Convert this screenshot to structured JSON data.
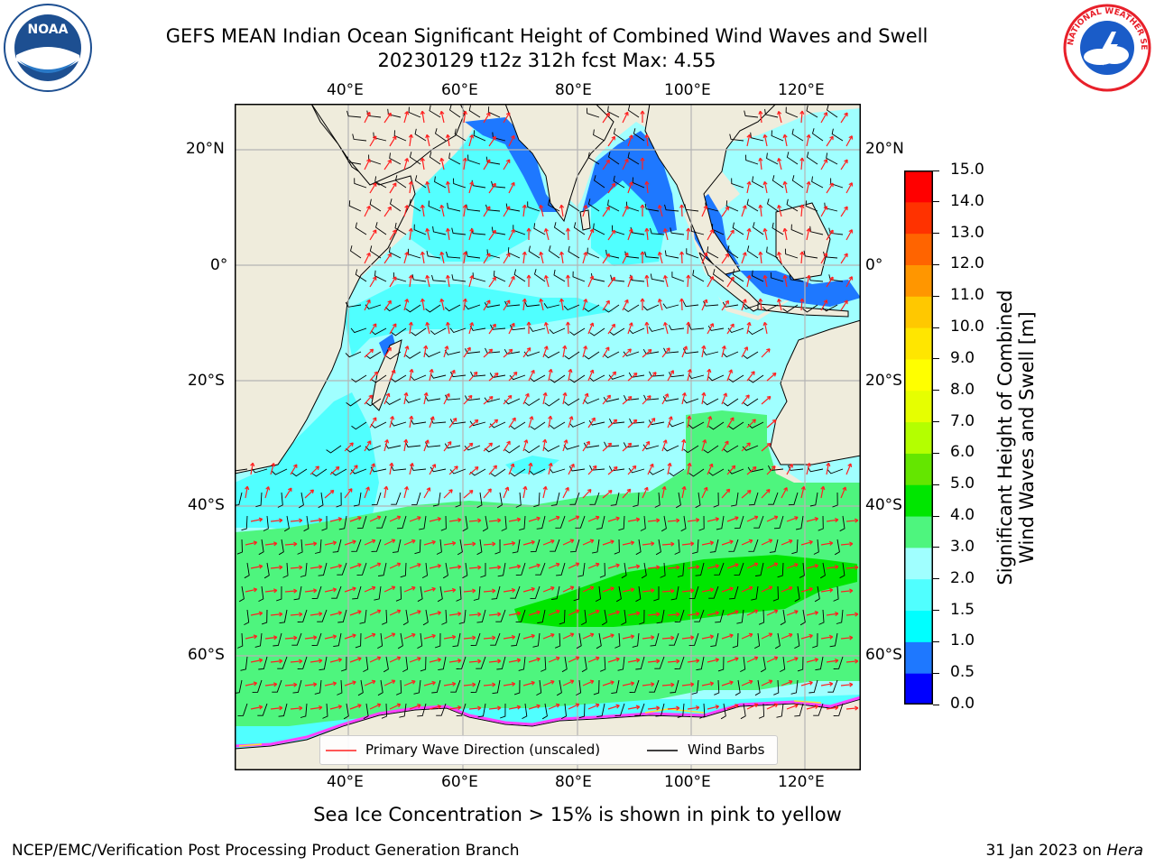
{
  "title": {
    "line1": "GEFS MEAN Indian Ocean Significant Height of Combined Wind Waves and Swell",
    "line2": "20230129 t12z 312h fcst   Max: 4.55"
  },
  "logos": {
    "left": {
      "text": "NOAA",
      "icon": "noaa-logo-icon"
    },
    "right": {
      "text": "NATIONAL WEATHER SERVICE",
      "icon": "nws-logo-icon"
    }
  },
  "map": {
    "lon_ticks_top": [
      "40°E",
      "60°E",
      "80°E",
      "100°E",
      "120°E"
    ],
    "lon_ticks_bottom": [
      "40°E",
      "60°E",
      "80°E",
      "100°E",
      "120°E"
    ],
    "lat_ticks_left": [
      "20°N",
      "0°",
      "20°S",
      "40°S",
      "60°S"
    ],
    "lat_ticks_right": [
      "20°N",
      "0°",
      "20°S",
      "40°S",
      "60°S"
    ],
    "extent": {
      "lon": [
        20,
        130
      ],
      "lat": [
        -72,
        27
      ]
    },
    "colors": {
      "land": "#efecdc",
      "grid": "#b4b4b4",
      "wave_arrow": "#ff2020",
      "wind_barb": "#000000"
    }
  },
  "legend": {
    "primary_wave": "Primary Wave Direction (unscaled)",
    "wind_barbs": "Wind Barbs"
  },
  "colorbar": {
    "label_line1": "Significant Height of Combined",
    "label_line2": "Wind Waves and Swell [m]",
    "ticks": [
      "0.0",
      "0.5",
      "1.0",
      "1.5",
      "2.0",
      "3.0",
      "4.0",
      "5.0",
      "6.0",
      "7.0",
      "8.0",
      "9.0",
      "10.0",
      "11.0",
      "12.0",
      "13.0",
      "14.0",
      "15.0"
    ],
    "colors": [
      "#0000ff",
      "#1e78ff",
      "#00ffff",
      "#50ffff",
      "#a0ffff",
      "#4ef57e",
      "#00e600",
      "#64e600",
      "#b4ff00",
      "#e6ff00",
      "#ffff00",
      "#ffe600",
      "#ffc800",
      "#ff9600",
      "#ff6400",
      "#ff3200",
      "#ff0000"
    ]
  },
  "caption": "Sea Ice Concentration > 15% is shown in pink to yellow",
  "footer": {
    "left": "NCEP/EMC/Verification Post Processing Product Generation Branch",
    "right_date": "31 Jan 2023 on ",
    "right_host": "Hera"
  }
}
